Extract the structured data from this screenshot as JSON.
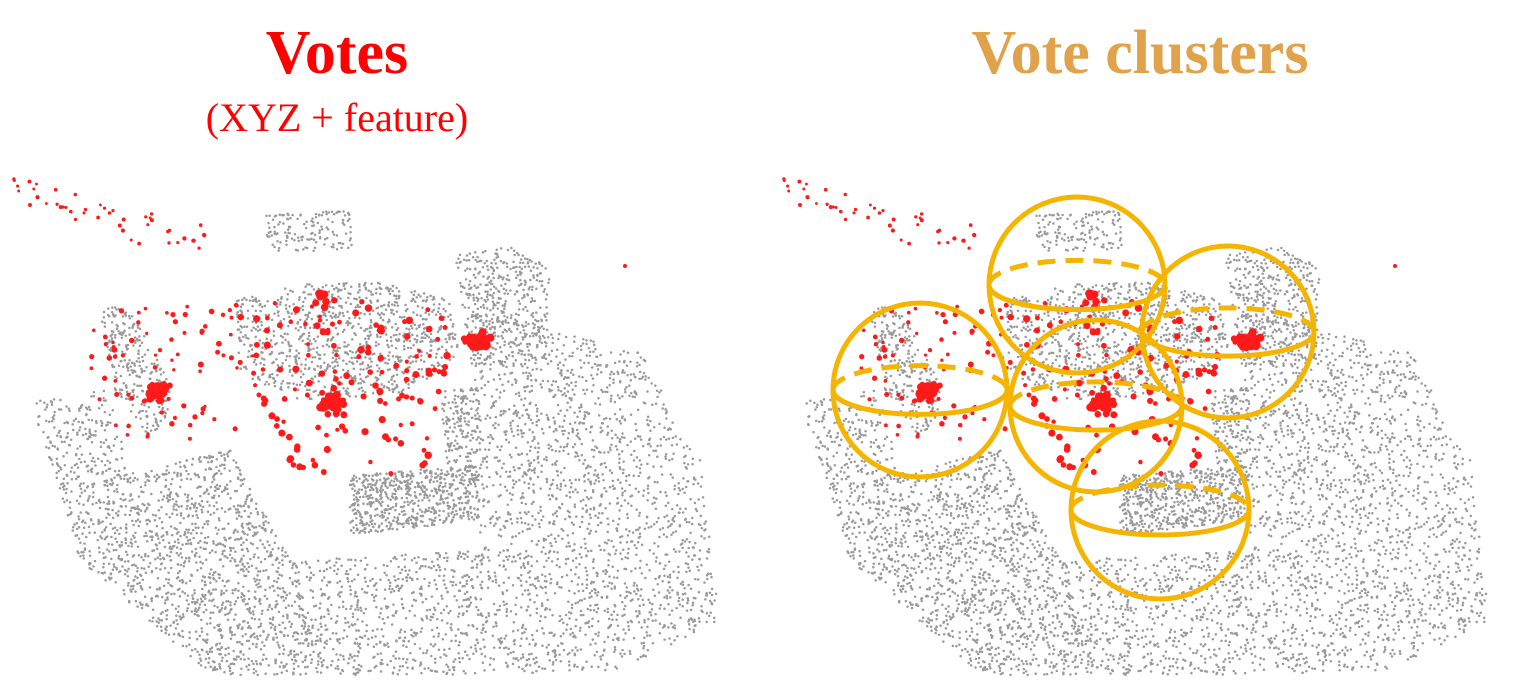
{
  "left_panel": {
    "title": "Votes",
    "subtitle": "(XYZ + feature)",
    "title_color": "#ff0000",
    "subtitle_color": "#ff0000"
  },
  "right_panel": {
    "title": "Vote clusters",
    "title_color": "#e0a24a",
    "cluster_count": 5
  },
  "colors": {
    "point_cloud": "#9a9a9a",
    "vote": "#ff1a1a",
    "cluster_sphere": "#f4b400"
  }
}
